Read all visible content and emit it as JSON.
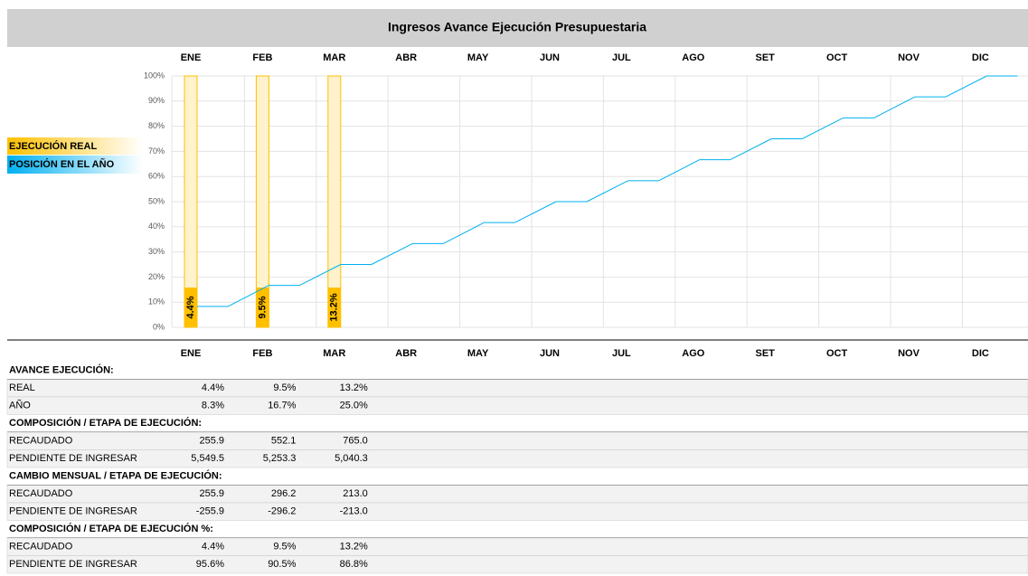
{
  "chart_data": {
    "type": "bar",
    "title": "Ingresos Avance Ejecución Presupuestaria",
    "categories": [
      "ENE",
      "FEB",
      "MAR",
      "ABR",
      "MAY",
      "JUN",
      "JUL",
      "AGO",
      "SET",
      "OCT",
      "NOV",
      "DIC"
    ],
    "series": [
      {
        "name": "EJECUCIÓN REAL",
        "type": "bar",
        "color": "#ffc000",
        "values": [
          4.4,
          9.5,
          13.2,
          null,
          null,
          null,
          null,
          null,
          null,
          null,
          null,
          null
        ],
        "value_labels": [
          "4.4%",
          "9.5%",
          "13.2%",
          null,
          null,
          null,
          null,
          null,
          null,
          null,
          null,
          null
        ]
      },
      {
        "name": "POSICIÓN EN EL AÑO",
        "type": "line",
        "color": "#00b0f0",
        "values": [
          8.3,
          16.7,
          25,
          33.3,
          41.7,
          50,
          58.3,
          66.7,
          75,
          83.3,
          91.7,
          100
        ]
      }
    ],
    "ylim": [
      0,
      100
    ],
    "yticks": [
      {
        "value": 0,
        "label": "0%"
      },
      {
        "value": 10,
        "label": "10%"
      },
      {
        "value": 20,
        "label": "20%"
      },
      {
        "value": 30,
        "label": "30%"
      },
      {
        "value": 40,
        "label": "40%"
      },
      {
        "value": 50,
        "label": "50%"
      },
      {
        "value": 60,
        "label": "60%"
      },
      {
        "value": 70,
        "label": "70%"
      },
      {
        "value": 80,
        "label": "80%"
      },
      {
        "value": 90,
        "label": "90%"
      },
      {
        "value": 100,
        "label": "100%"
      }
    ],
    "grid": true
  },
  "table": {
    "sections": [
      {
        "title": "AVANCE EJECUCIÓN:",
        "rows": [
          {
            "label": "REAL",
            "values": [
              "4.4%",
              "9.5%",
              "13.2%"
            ]
          },
          {
            "label": "AÑO",
            "values": [
              "8.3%",
              "16.7%",
              "25.0%"
            ]
          }
        ]
      },
      {
        "title": "COMPOSICIÓN / ETAPA DE EJECUCIÓN:",
        "rows": [
          {
            "label": "RECAUDADO",
            "values": [
              "255.9",
              "552.1",
              "765.0"
            ]
          },
          {
            "label": "PENDIENTE DE INGRESAR",
            "values": [
              "5,549.5",
              "5,253.3",
              "5,040.3"
            ]
          }
        ]
      },
      {
        "title": "CAMBIO MENSUAL / ETAPA DE EJECUCIÓN:",
        "rows": [
          {
            "label": "RECAUDADO",
            "values": [
              "255.9",
              "296.2",
              "213.0"
            ]
          },
          {
            "label": "PENDIENTE DE INGRESAR",
            "values": [
              "-255.9",
              "-296.2",
              "-213.0"
            ]
          }
        ]
      },
      {
        "title": "COMPOSICIÓN / ETAPA DE EJECUCIÓN %:",
        "rows": [
          {
            "label": "RECAUDADO",
            "values": [
              "4.4%",
              "9.5%",
              "13.2%"
            ]
          },
          {
            "label": "PENDIENTE DE INGRESAR",
            "values": [
              "95.6%",
              "90.5%",
              "86.8%"
            ]
          }
        ]
      }
    ]
  }
}
